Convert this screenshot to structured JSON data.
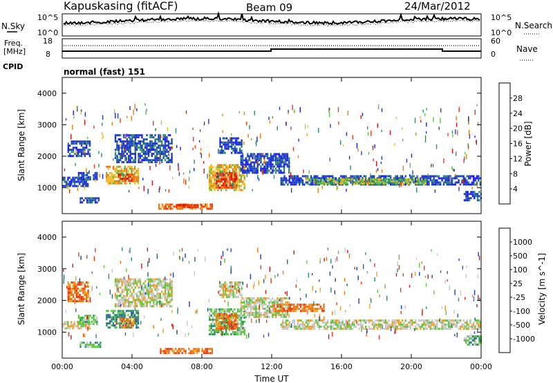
{
  "header": {
    "site": "Kapuskasing (fitACF)",
    "beam": "Beam 09",
    "date": "24/Mar/2012"
  },
  "noise_panel": {
    "left_label": "N.Sky",
    "right_label": "N.Search",
    "left_ticks": [
      "10^5",
      "10^0"
    ],
    "right_ticks": [
      "10^5",
      "10^0"
    ]
  },
  "freq_panel": {
    "left_label_1": "Freq.",
    "left_label_2": "[MHz]",
    "left_ticks": [
      "18",
      "8"
    ],
    "right_label": "Nave",
    "right_ticks": [
      "60",
      "0"
    ]
  },
  "cpid": {
    "label": "CPID",
    "value": "normal (fast) 151"
  },
  "colors": {
    "power_scale": [
      "#1a1aff",
      "#2040c0",
      "#2e8a6e",
      "#5cbb4a",
      "#f2b820",
      "#f07a10",
      "#ee3a10",
      "#e01010"
    ],
    "velocity_scale": [
      "#1a3cc0",
      "#2060a0",
      "#2e8a6e",
      "#5ac840",
      "#c8c8c8",
      "#f0a020",
      "#f07010",
      "#e83818",
      "#e01010"
    ]
  },
  "power_colorbar": {
    "label": "Power [dB]",
    "ticks": [
      "28",
      "24",
      "20",
      "16",
      "12",
      "8",
      "4"
    ]
  },
  "velocity_colorbar": {
    "label": "Velocity [m s^-1]",
    "ticks": [
      "1000",
      "500",
      "100",
      "25",
      "-25",
      "-100",
      "-500",
      "-1000"
    ]
  },
  "chart_data": [
    {
      "type": "heatmap",
      "panel": "power",
      "ylabel": "Slant Range [km]",
      "xlabel": "Time UT",
      "ylim": [
        180,
        4500
      ],
      "xlim": [
        0,
        24
      ],
      "yticks": [
        "1000",
        "2000",
        "3000",
        "4000"
      ],
      "xticks": [
        "00:00",
        "04:00",
        "08:00",
        "12:00",
        "16:00",
        "20:00",
        "00:00"
      ],
      "regions": [
        {
          "t0": 0.0,
          "t1": 1.5,
          "r0": 1050,
          "r1": 1350,
          "level": 1
        },
        {
          "t0": 0.3,
          "t1": 1.6,
          "r0": 2000,
          "r1": 2500,
          "level": 1
        },
        {
          "t0": 0.9,
          "t1": 2.0,
          "r0": 1250,
          "r1": 1500,
          "level": 1
        },
        {
          "t0": 1.0,
          "t1": 2.2,
          "r0": 550,
          "r1": 700,
          "level": 1
        },
        {
          "t0": 2.5,
          "t1": 4.4,
          "r0": 1150,
          "r1": 1700,
          "level": 4
        },
        {
          "t0": 3.2,
          "t1": 4.1,
          "r0": 1200,
          "r1": 1450,
          "level": 6
        },
        {
          "t0": 3.0,
          "t1": 6.3,
          "r0": 1800,
          "r1": 2700,
          "level": 1
        },
        {
          "t0": 5.5,
          "t1": 8.6,
          "r0": 350,
          "r1": 500,
          "level": 5
        },
        {
          "t0": 6.5,
          "t1": 8.0,
          "r0": 400,
          "r1": 480,
          "level": 6
        },
        {
          "t0": 8.4,
          "t1": 10.4,
          "r0": 900,
          "r1": 1750,
          "level": 4
        },
        {
          "t0": 8.8,
          "t1": 10.0,
          "r0": 1000,
          "r1": 1500,
          "level": 6
        },
        {
          "t0": 9.0,
          "t1": 10.3,
          "r0": 2100,
          "r1": 2600,
          "level": 1
        },
        {
          "t0": 10.2,
          "t1": 13.0,
          "r0": 1500,
          "r1": 2100,
          "level": 1
        },
        {
          "t0": 12.5,
          "t1": 24.0,
          "r0": 1100,
          "r1": 1400,
          "level": 1
        },
        {
          "t0": 14.0,
          "t1": 21.0,
          "r0": 1150,
          "r1": 1300,
          "level": 3
        },
        {
          "t0": 23.0,
          "t1": 24.0,
          "r0": 600,
          "r1": 900,
          "level": 1
        }
      ]
    },
    {
      "type": "heatmap",
      "panel": "velocity",
      "ylabel": "Slant Range [km]",
      "xlabel": "Time UT",
      "ylim": [
        180,
        4500
      ],
      "xlim": [
        0,
        24
      ],
      "yticks": [
        "1000",
        "2000",
        "3000",
        "4000"
      ],
      "xticks": [
        "00:00",
        "04:00",
        "08:00",
        "12:00",
        "16:00",
        "20:00",
        "00:00"
      ],
      "regions": [
        {
          "t0": 0.0,
          "t1": 1.6,
          "r0": 1100,
          "r1": 1350,
          "level": 4
        },
        {
          "t0": 0.3,
          "t1": 1.5,
          "r0": 2000,
          "r1": 2600,
          "level": 6
        },
        {
          "t0": 0.9,
          "t1": 2.0,
          "r0": 1250,
          "r1": 1550,
          "level": 3
        },
        {
          "t0": 1.0,
          "t1": 2.2,
          "r0": 550,
          "r1": 700,
          "level": 3
        },
        {
          "t0": 2.5,
          "t1": 4.4,
          "r0": 1150,
          "r1": 1700,
          "level": 2
        },
        {
          "t0": 3.3,
          "t1": 4.1,
          "r0": 1150,
          "r1": 1450,
          "level": 6
        },
        {
          "t0": 3.0,
          "t1": 6.3,
          "r0": 1800,
          "r1": 2700,
          "level": 4
        },
        {
          "t0": 5.5,
          "t1": 8.6,
          "r0": 350,
          "r1": 500,
          "level": 6
        },
        {
          "t0": 8.4,
          "t1": 10.4,
          "r0": 900,
          "r1": 1750,
          "level": 3
        },
        {
          "t0": 8.8,
          "t1": 10.0,
          "r0": 1100,
          "r1": 1600,
          "level": 6
        },
        {
          "t0": 9.0,
          "t1": 10.3,
          "r0": 2100,
          "r1": 2600,
          "level": 4
        },
        {
          "t0": 10.2,
          "t1": 13.0,
          "r0": 1500,
          "r1": 2100,
          "level": 4
        },
        {
          "t0": 12.5,
          "t1": 24.0,
          "r0": 1100,
          "r1": 1400,
          "level": 4
        },
        {
          "t0": 12.0,
          "t1": 15.0,
          "r0": 1650,
          "r1": 1900,
          "level": 6
        },
        {
          "t0": 23.0,
          "t1": 24.0,
          "r0": 600,
          "r1": 900,
          "level": 3
        }
      ]
    }
  ]
}
